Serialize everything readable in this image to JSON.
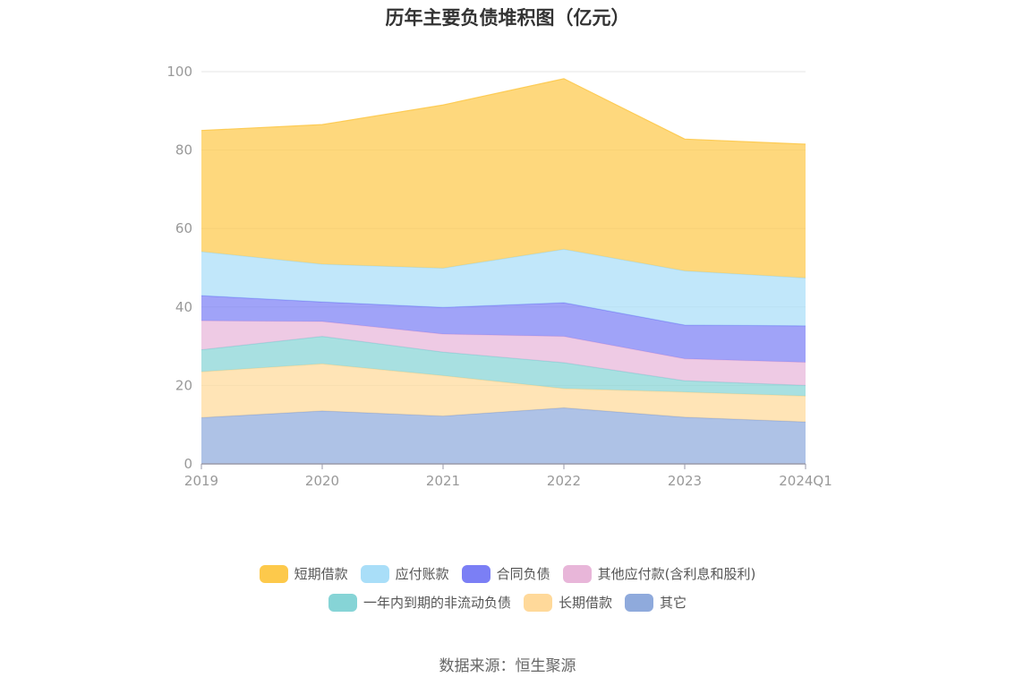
{
  "title": "历年主要负债堆积图（亿元）",
  "source": "数据来源：恒生聚源",
  "chart_data": {
    "type": "area",
    "stacked": true,
    "categories": [
      "2019",
      "2020",
      "2021",
      "2022",
      "2023",
      "2024Q1"
    ],
    "ylim": [
      0,
      100
    ],
    "yticks": [
      0,
      20,
      40,
      60,
      80,
      100
    ],
    "grid": "horizontal",
    "legend_position": "bottom",
    "series": [
      {
        "name": "其它",
        "color": "#8FAADC",
        "values": [
          11.8,
          13.5,
          12.2,
          14.3,
          11.9,
          10.7
        ]
      },
      {
        "name": "长期借款",
        "color": "#FFD99A",
        "values": [
          11.7,
          12.0,
          10.3,
          4.9,
          6.4,
          6.6
        ]
      },
      {
        "name": "一年内到期的非流动负债",
        "color": "#86D4D6",
        "values": [
          5.6,
          7.0,
          6.0,
          6.6,
          2.9,
          2.7
        ]
      },
      {
        "name": "其他应付款(含利息和股利)",
        "color": "#E8B6D9",
        "values": [
          7.4,
          3.8,
          4.6,
          6.7,
          5.6,
          5.9
        ]
      },
      {
        "name": "合同负债",
        "color": "#7B7FF5",
        "values": [
          6.4,
          5.0,
          6.8,
          8.6,
          8.6,
          9.3
        ]
      },
      {
        "name": "应付账款",
        "color": "#A9DEF8",
        "values": [
          11.2,
          9.6,
          10.0,
          13.6,
          13.8,
          12.2
        ]
      },
      {
        "name": "短期借款",
        "color": "#FDC94B",
        "values": [
          30.9,
          35.6,
          41.6,
          43.5,
          33.6,
          34.1
        ]
      }
    ]
  },
  "legend_rows": [
    [
      "短期借款",
      "应付账款",
      "合同负债",
      "其他应付款(含利息和股利)"
    ],
    [
      "一年内到期的非流动负债",
      "长期借款",
      "其它"
    ]
  ]
}
